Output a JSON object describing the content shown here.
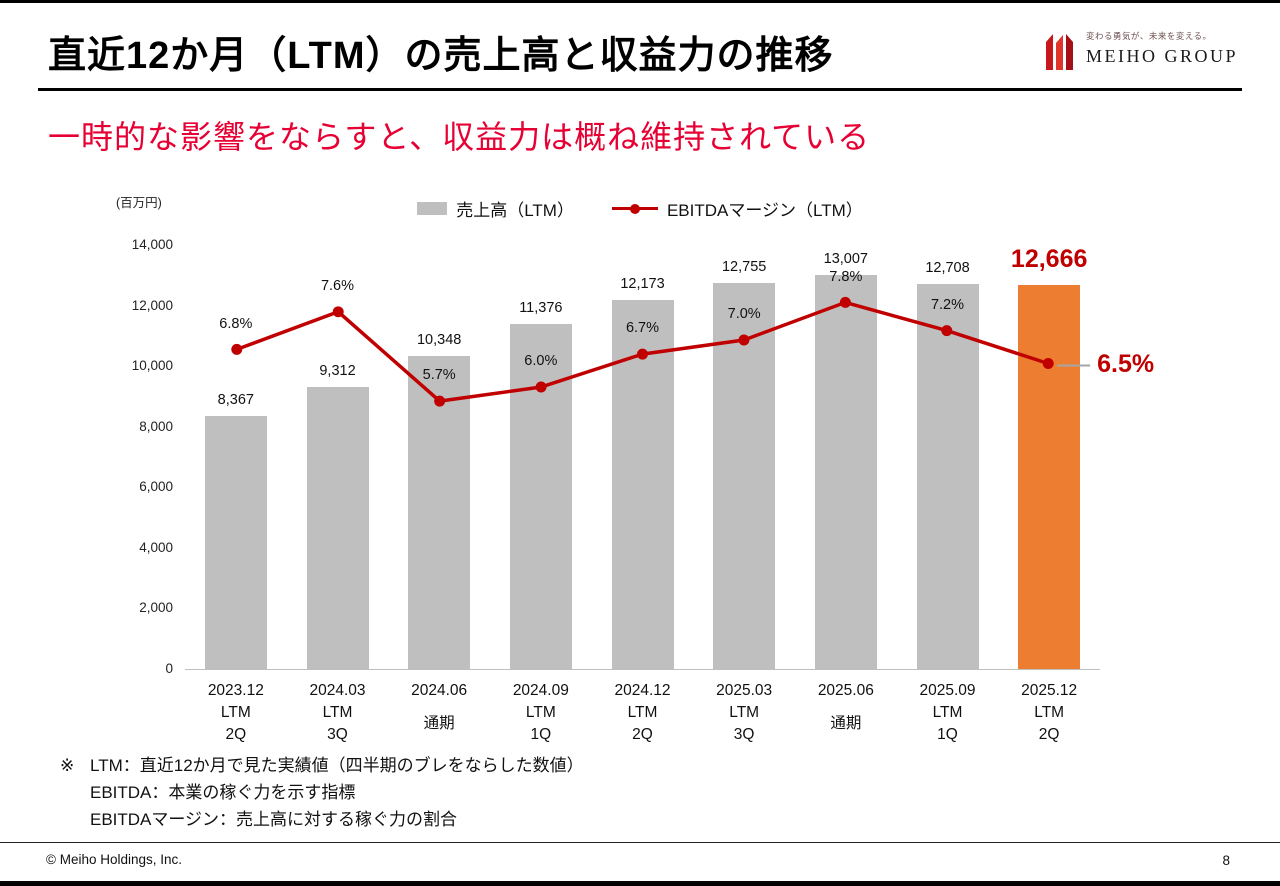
{
  "page": {
    "title": "直近12か月（LTM）の売上高と収益力の推移",
    "subtitle": "一時的な影響をならすと、収益力は概ね維持されている",
    "footer_left": "© Meiho Holdings, Inc.",
    "page_number": "8"
  },
  "logo": {
    "tagline": "変わる勇気が、未来を変える。",
    "name": "MEIHO GROUP"
  },
  "footnotes": {
    "marker": "※",
    "lines": [
      "LTM：直近12か月で見た実績値（四半期のブレをならした数値）",
      "EBITDA：本業の稼ぐ力を示す指標",
      "EBITDAマージン：売上高に対する稼ぐ力の割合"
    ]
  },
  "colors": {
    "accent_red": "#C00000",
    "subtitle_red": "#E60033",
    "bar_gray": "#BFBFBF",
    "bar_highlight_orange": "#ED7D31"
  },
  "chart_data": {
    "type": "bar",
    "title": "",
    "unit_label": "(百万円)",
    "legend_position": "top",
    "grid": false,
    "categories": [
      "2023.12",
      "2024.03",
      "2024.06",
      "2024.09",
      "2024.12",
      "2025.03",
      "2025.06",
      "2025.09",
      "2025.12"
    ],
    "category_sublabels": [
      "LTM\n2Q",
      "LTM\n3Q",
      "通期",
      "LTM\n1Q",
      "LTM\n2Q",
      "LTM\n3Q",
      "通期",
      "LTM\n1Q",
      "LTM\n2Q"
    ],
    "yticks": [
      "0",
      "2,000",
      "4,000",
      "6,000",
      "8,000",
      "10,000",
      "12,000",
      "14,000"
    ],
    "ylim": [
      0,
      14000
    ],
    "y2lim": [
      0,
      9
    ],
    "series": [
      {
        "name": "売上高（LTM）",
        "type": "bar",
        "values": [
          8367,
          9312,
          10348,
          11376,
          12173,
          12755,
          13007,
          12708,
          12666
        ],
        "labels": [
          "8,367",
          "9,312",
          "10,348",
          "11,376",
          "12,173",
          "12,755",
          "13,007",
          "12,708",
          "12,666"
        ],
        "color": "#BFBFBF",
        "highlight_index": 8,
        "highlight_color": "#ED7D31"
      },
      {
        "name": "EBITDAマージン（LTM）",
        "type": "line",
        "values": [
          6.8,
          7.6,
          5.7,
          6.0,
          6.7,
          7.0,
          7.8,
          7.2,
          6.5
        ],
        "labels": [
          "6.8%",
          "7.6%",
          "5.7%",
          "6.0%",
          "6.7%",
          "7.0%",
          "7.8%",
          "7.2%",
          "6.5%"
        ],
        "color": "#C00000",
        "highlight_index": 8
      }
    ]
  }
}
